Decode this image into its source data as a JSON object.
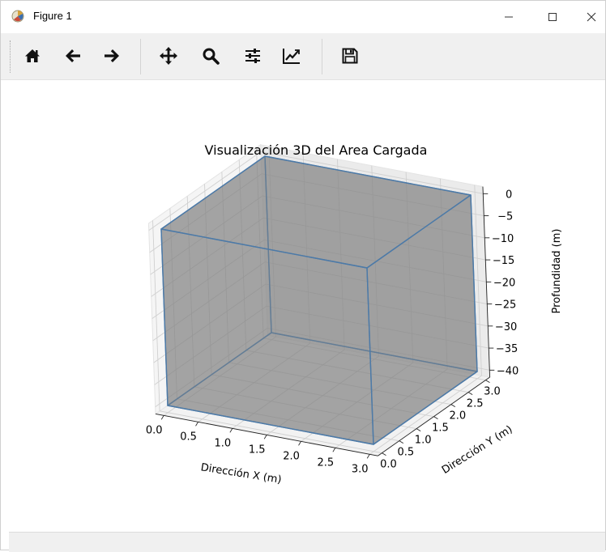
{
  "window": {
    "title": "Figure 1",
    "controls": {
      "minimize": "—",
      "maximize": "☐",
      "close": "✕"
    }
  },
  "toolbar": {
    "items": [
      {
        "name": "home-button",
        "icon": "home-icon",
        "tooltip": "Home"
      },
      {
        "name": "back-button",
        "icon": "arrow-left-icon",
        "tooltip": "Back"
      },
      {
        "name": "forward-button",
        "icon": "arrow-right-icon",
        "tooltip": "Forward"
      },
      {
        "name": "pan-button",
        "icon": "move-icon",
        "tooltip": "Pan"
      },
      {
        "name": "zoom-button",
        "icon": "magnifier-icon",
        "tooltip": "Zoom"
      },
      {
        "name": "subplots-button",
        "icon": "sliders-icon",
        "tooltip": "Subplots"
      },
      {
        "name": "edit-axis-button",
        "icon": "line-chart-icon",
        "tooltip": "Axes"
      },
      {
        "name": "save-button",
        "icon": "floppy-disk-icon",
        "tooltip": "Save"
      }
    ]
  },
  "chart_data": {
    "type": "3d-box",
    "title": "Visualización 3D del Area Cargada",
    "xlabel": "Dirección X (m)",
    "ylabel": "Dirección Y (m)",
    "zlabel": "Profundidad (m)",
    "xlim": [
      0,
      3
    ],
    "ylim": [
      0,
      3
    ],
    "zlim": [
      -40,
      0
    ],
    "xticks": [
      "0.0",
      "0.5",
      "1.0",
      "1.5",
      "2.0",
      "2.5",
      "3.0"
    ],
    "yticks": [
      "0.0",
      "0.5",
      "1.0",
      "1.5",
      "2.0",
      "2.5",
      "3.0"
    ],
    "zticks": [
      "0",
      "−5",
      "−10",
      "−15",
      "−20",
      "−25",
      "−30",
      "−35",
      "−40"
    ],
    "box": {
      "x": [
        0,
        3
      ],
      "y": [
        0,
        3
      ],
      "z": [
        -40,
        0
      ]
    },
    "face_color": "#808080",
    "edge_color": "#4c7aa8",
    "grid": true
  }
}
